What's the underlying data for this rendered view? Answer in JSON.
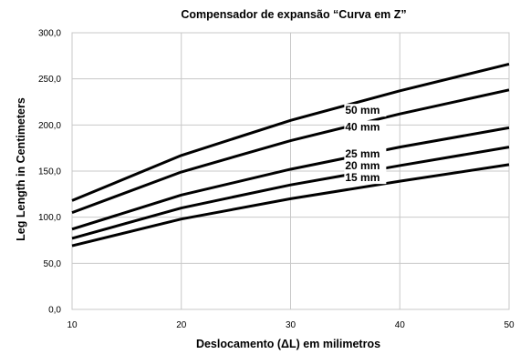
{
  "chart_data": {
    "type": "line",
    "title": "Compensador de expansão “Curva em Z”",
    "xlabel": "Deslocamento (ΔL) em milimetros",
    "ylabel": "Leg Length in Centimeters",
    "x": [
      10,
      20,
      30,
      40,
      50
    ],
    "xlim": [
      10,
      50
    ],
    "ylim": [
      0,
      300
    ],
    "x_ticks": [
      "10",
      "20",
      "30",
      "40",
      "50"
    ],
    "y_ticks": [
      "0,0",
      "50,0",
      "100,0",
      "150,0",
      "200,0",
      "250,0",
      "300,0"
    ],
    "grid": true,
    "legend": "inline labels",
    "series": [
      {
        "name": "50 mm",
        "values": [
          118,
          167,
          205,
          237,
          266
        ]
      },
      {
        "name": "40 mm",
        "values": [
          105,
          149,
          183,
          212,
          238
        ]
      },
      {
        "name": "25 mm",
        "values": [
          87,
          124,
          152,
          176,
          197
        ]
      },
      {
        "name": "20 mm",
        "values": [
          77,
          110,
          135,
          156,
          176
        ]
      },
      {
        "name": "15 mm",
        "values": [
          69,
          98,
          120,
          139,
          157
        ]
      }
    ],
    "label_x": [
      35,
      35,
      35,
      35,
      35
    ],
    "label_y": [
      213,
      195,
      166,
      153,
      140
    ]
  }
}
